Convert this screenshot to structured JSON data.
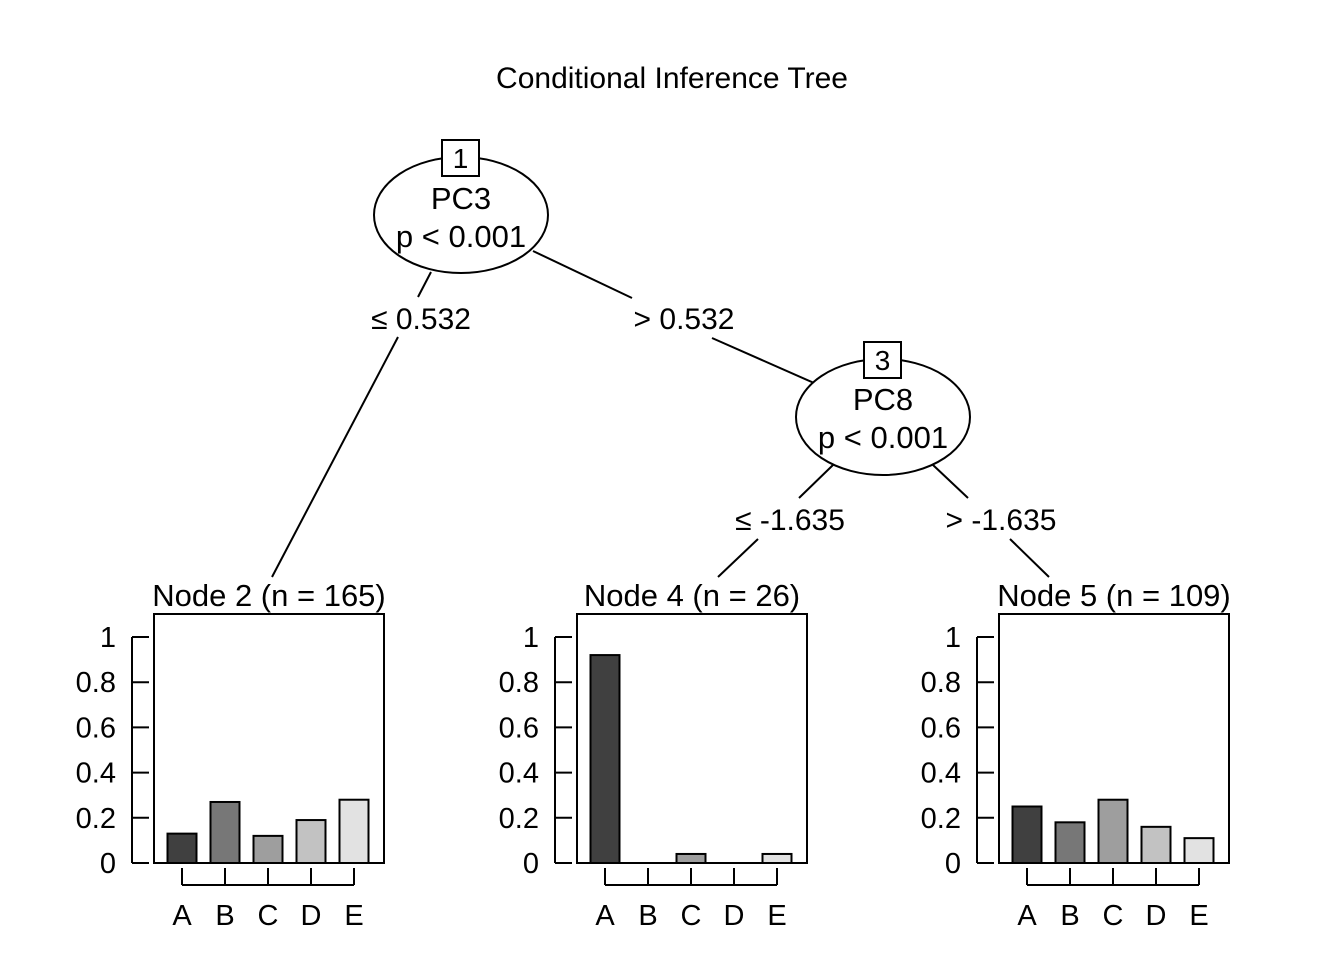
{
  "title": "Conditional Inference Tree",
  "inner_nodes": [
    {
      "id": "1",
      "variable": "PC3",
      "pvalue": "p < 0.001"
    },
    {
      "id": "3",
      "variable": "PC8",
      "pvalue": "p < 0.001"
    }
  ],
  "edges": [
    {
      "label": "≤ 0.532"
    },
    {
      "label": "> 0.532"
    },
    {
      "label": "≤ -1.635"
    },
    {
      "label": "> -1.635"
    }
  ],
  "chart_data": [
    {
      "type": "bar",
      "title": "Node 2 (n = 165)",
      "categories": [
        "A",
        "B",
        "C",
        "D",
        "E"
      ],
      "values": [
        0.13,
        0.27,
        0.12,
        0.19,
        0.28
      ],
      "colors": [
        "#404040",
        "#777777",
        "#9e9e9e",
        "#c2c2c2",
        "#e2e2e2"
      ],
      "ylim": [
        0,
        1
      ],
      "yticks": [
        "0",
        "0.2",
        "0.4",
        "0.6",
        "0.8",
        "1"
      ]
    },
    {
      "type": "bar",
      "title": "Node 4 (n = 26)",
      "categories": [
        "A",
        "B",
        "C",
        "D",
        "E"
      ],
      "values": [
        0.92,
        0,
        0.04,
        0,
        0.04
      ],
      "colors": [
        "#404040",
        "#777777",
        "#9e9e9e",
        "#c2c2c2",
        "#e2e2e2"
      ],
      "ylim": [
        0,
        1
      ],
      "yticks": [
        "0",
        "0.2",
        "0.4",
        "0.6",
        "0.8",
        "1"
      ]
    },
    {
      "type": "bar",
      "title": "Node 5 (n = 109)",
      "categories": [
        "A",
        "B",
        "C",
        "D",
        "E"
      ],
      "values": [
        0.25,
        0.18,
        0.28,
        0.16,
        0.11
      ],
      "colors": [
        "#404040",
        "#777777",
        "#9e9e9e",
        "#c2c2c2",
        "#e2e2e2"
      ],
      "ylim": [
        0,
        1
      ],
      "yticks": [
        "0",
        "0.2",
        "0.4",
        "0.6",
        "0.8",
        "1"
      ]
    }
  ]
}
